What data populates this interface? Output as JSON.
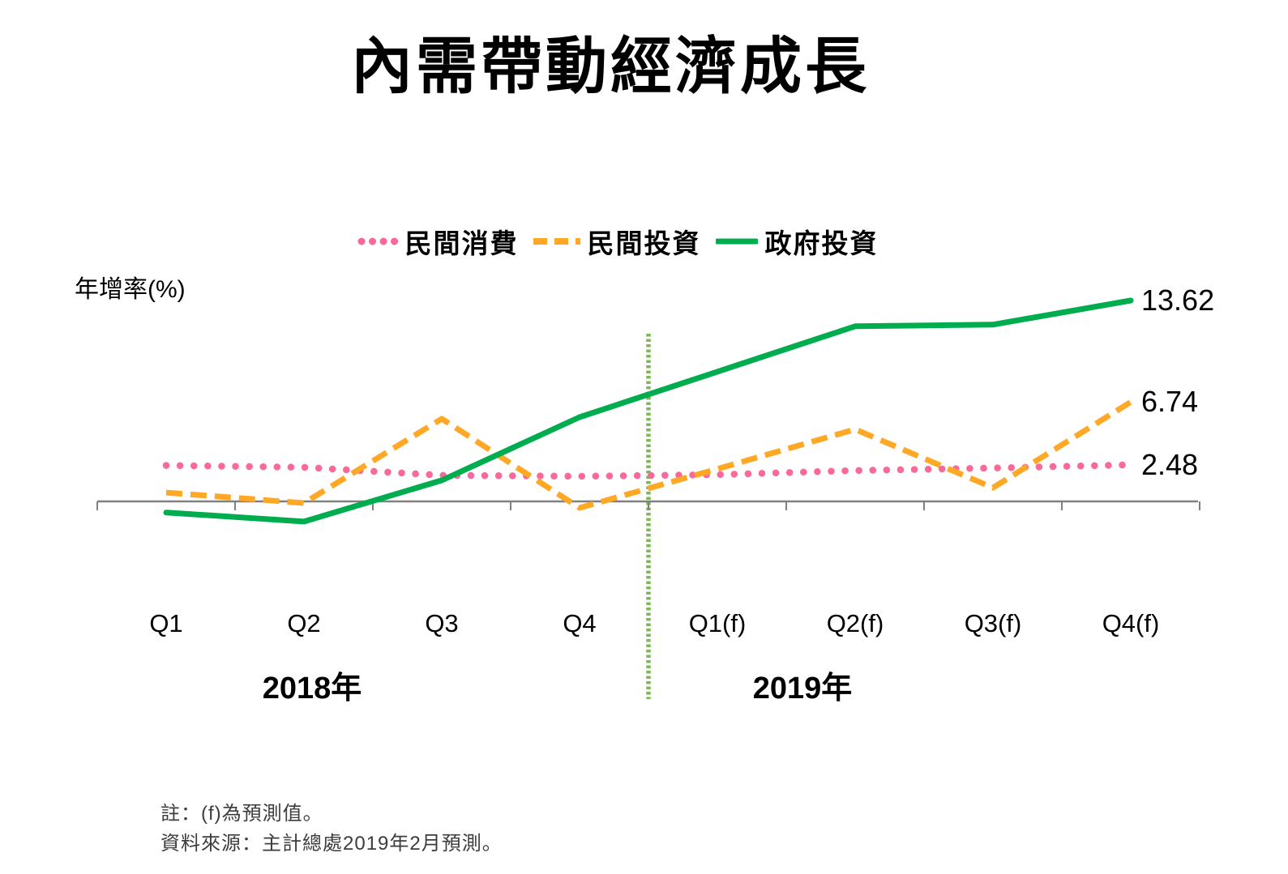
{
  "notes": {
    "line1": "註：(f)為預測值。",
    "line2": "資料來源：主計總處2019年2月預測。"
  },
  "chart_data": {
    "type": "line",
    "title": "內需帶動經濟成長",
    "ylabel": "年增率(%)",
    "unit": "%",
    "categories": [
      "Q1",
      "Q2",
      "Q3",
      "Q4",
      "Q1(f)",
      "Q2(f)",
      "Q3(f)",
      "Q4(f)"
    ],
    "year_groups": [
      {
        "label": "2018年",
        "categories": [
          "Q1",
          "Q2",
          "Q3",
          "Q4"
        ]
      },
      {
        "label": "2019年",
        "categories": [
          "Q1(f)",
          "Q2(f)",
          "Q3(f)",
          "Q4(f)"
        ]
      }
    ],
    "series": [
      {
        "id": "private-consumption",
        "name": "民間消費",
        "color": "#F9699C",
        "style": "dotted",
        "values": [
          2.44,
          2.31,
          1.77,
          1.7,
          1.81,
          2.09,
          2.26,
          2.48
        ],
        "end_label": "2.48"
      },
      {
        "id": "private-investment",
        "name": "民間投資",
        "color": "#FFA826",
        "style": "dashed",
        "values": [
          0.6,
          -0.11,
          5.6,
          -0.44,
          2.2,
          4.89,
          0.93,
          6.74
        ],
        "end_label": "6.74"
      },
      {
        "id": "government-investment",
        "name": "政府投資",
        "color": "#00AD4E",
        "style": "solid",
        "values": [
          -0.75,
          -1.37,
          1.43,
          5.71,
          8.79,
          11.87,
          11.98,
          13.62
        ],
        "end_label": "13.62"
      }
    ],
    "forecast_divider": {
      "between": [
        "Q4",
        "Q1(f)"
      ],
      "color": "#7CB854",
      "style": "dotted"
    },
    "axis_color": "#808080",
    "legend_position": "top",
    "grid": false,
    "ylim": [
      -2,
      15
    ]
  }
}
